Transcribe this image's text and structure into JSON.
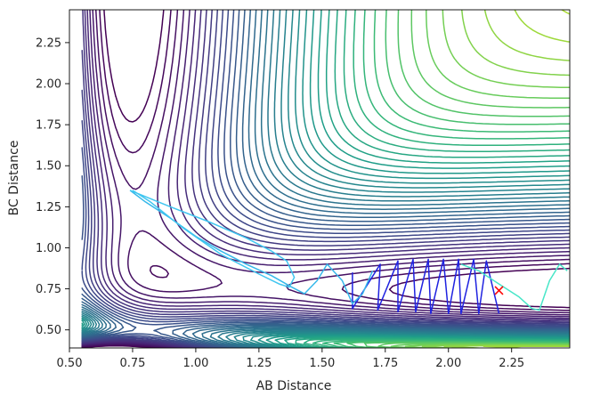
{
  "chart_data": {
    "type": "contour",
    "title": "",
    "xlabel": "AB Distance",
    "ylabel": "BC Distance",
    "xlim": [
      0.5,
      2.48
    ],
    "ylim": [
      0.39,
      2.45
    ],
    "xticks": [
      0.5,
      0.75,
      1.0,
      1.25,
      1.5,
      1.75,
      2.0,
      2.25
    ],
    "xtick_labels": [
      "0.50",
      "0.75",
      "1.00",
      "1.25",
      "1.50",
      "1.75",
      "2.00",
      "2.25"
    ],
    "yticks": [
      0.5,
      0.75,
      1.0,
      1.25,
      1.5,
      1.75,
      2.0,
      2.25
    ],
    "ytick_labels": [
      "0.50",
      "0.75",
      "1.00",
      "1.25",
      "1.50",
      "1.75",
      "2.00",
      "2.25"
    ],
    "grid": false,
    "colormap": "viridis",
    "surface": {
      "description_free_params": true,
      "Da": 4.75,
      "Db": 4.75,
      "beta": 1.94,
      "r0": 0.74,
      "levels_min": -4.4,
      "levels_max": 0.2,
      "n_levels": 48
    },
    "trajectories": [
      {
        "color": "#1f22e0",
        "x": [
          2.2,
          2.15,
          2.12,
          2.1,
          2.05,
          2.04,
          2.0,
          1.98,
          1.93,
          1.92,
          1.87,
          1.86,
          1.8,
          1.8,
          1.72,
          1.73,
          1.62,
          1.62
        ],
        "y": [
          0.6,
          0.92,
          0.6,
          0.93,
          0.6,
          0.93,
          0.6,
          0.93,
          0.6,
          0.93,
          0.61,
          0.93,
          0.61,
          0.92,
          0.62,
          0.9,
          0.63,
          0.85
        ]
      },
      {
        "color": "#36b8ea",
        "x": [
          0.74,
          0.8,
          0.9,
          1.0,
          1.1,
          1.2,
          1.3,
          1.38,
          1.43,
          1.48,
          1.52,
          1.58,
          1.62,
          1.66,
          1.7
        ],
        "y": [
          1.35,
          1.28,
          1.18,
          1.07,
          0.98,
          0.9,
          0.83,
          0.76,
          0.72,
          0.8,
          0.9,
          0.8,
          0.66,
          0.72,
          0.86
        ]
      },
      {
        "color": "#48e6c8",
        "x": [
          2.05,
          2.12,
          2.2,
          2.28,
          2.33,
          2.36,
          2.4,
          2.44,
          2.47
        ],
        "y": [
          0.9,
          0.86,
          0.78,
          0.7,
          0.63,
          0.62,
          0.8,
          0.9,
          0.86
        ]
      },
      {
        "color": "#40c6f0",
        "x": [
          0.74,
          0.9,
          1.05,
          1.2,
          1.3,
          1.36,
          1.39,
          1.37,
          1.33,
          1.25,
          1.1,
          0.95,
          0.82,
          0.75
        ],
        "y": [
          1.35,
          1.25,
          1.16,
          1.06,
          0.98,
          0.92,
          0.82,
          0.76,
          0.78,
          0.84,
          0.96,
          1.12,
          1.28,
          1.35
        ]
      }
    ],
    "marker": {
      "x": 2.2,
      "y": 0.74,
      "symbol": "x",
      "color": "#ff0000"
    }
  }
}
